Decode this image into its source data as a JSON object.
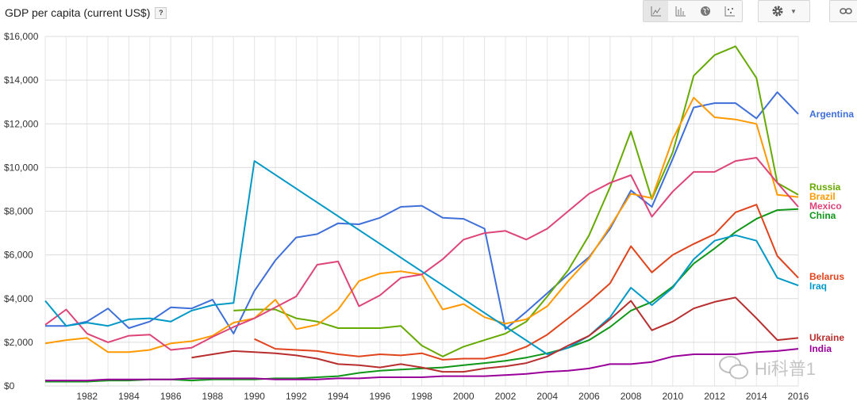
{
  "header": {
    "title": "GDP per capita (current US$)",
    "help_label": "?",
    "chart_type_buttons": [
      {
        "icon": "line-chart-icon",
        "active": true
      },
      {
        "icon": "bar-chart-icon",
        "active": false
      },
      {
        "icon": "globe-map-icon",
        "active": false
      },
      {
        "icon": "scatter-chart-icon",
        "active": false
      }
    ],
    "settings_icon": "gear-icon",
    "link_icon": "link-icon"
  },
  "watermark": "Hi科普1",
  "chart_data": {
    "type": "line",
    "title": "GDP per capita (current US$)",
    "xlabel": "",
    "ylabel": "",
    "xlim": [
      1980,
      2016
    ],
    "ylim": [
      0,
      16000
    ],
    "grid": true,
    "legend": "right (labels at line ends)",
    "x_ticks": [
      "1982",
      "1984",
      "1986",
      "1988",
      "1990",
      "1992",
      "1994",
      "1996",
      "1998",
      "2000",
      "2002",
      "2004",
      "2006",
      "2008",
      "2010",
      "2012",
      "2014",
      "2016"
    ],
    "y_ticks": [
      "$0",
      "$2,000",
      "$4,000",
      "$6,000",
      "$8,000",
      "$10,000",
      "$12,000",
      "$14,000",
      "$16,000"
    ],
    "series": [
      {
        "name": "Argentina",
        "color": "#3f6fd8",
        "start": 1980,
        "values": [
          2750,
          2750,
          2950,
          3550,
          2650,
          2950,
          3600,
          3550,
          3950,
          2400,
          4350,
          5750,
          6800,
          6950,
          7450,
          7400,
          7700,
          8200,
          8250,
          7700,
          7650,
          7200,
          2600,
          3400,
          4250,
          5100,
          5900,
          7200,
          8950,
          8200,
          10400,
          12750,
          12950,
          12950,
          12250,
          13450,
          12450
        ]
      },
      {
        "name": "Russia",
        "color": "#66aa00",
        "start": 1989,
        "values": [
          3450,
          3500,
          3500,
          3100,
          2950,
          2650,
          2650,
          2650,
          2750,
          1850,
          1350,
          1800,
          2100,
          2400,
          2950,
          4100,
          5300,
          6900,
          9100,
          11650,
          8550,
          10700,
          14200,
          15150,
          15550,
          14100,
          9300,
          8750
        ]
      },
      {
        "name": "Brazil",
        "color": "#ff9900",
        "start": 1980,
        "values": [
          1950,
          2100,
          2200,
          1550,
          1550,
          1650,
          1950,
          2050,
          2300,
          2900,
          3100,
          3950,
          2600,
          2800,
          3500,
          4800,
          5150,
          5250,
          5100,
          3500,
          3750,
          3150,
          2850,
          3050,
          3650,
          4800,
          5850,
          7300,
          8800,
          8600,
          11300,
          13200,
          12300,
          12200,
          12000,
          8750,
          8650
        ]
      },
      {
        "name": "Mexico",
        "color": "#dd4477",
        "start": 1980,
        "values": [
          2800,
          3500,
          2400,
          2000,
          2300,
          2350,
          1650,
          1750,
          2250,
          2700,
          3100,
          3600,
          4100,
          5550,
          5700,
          3650,
          4150,
          4950,
          5100,
          5800,
          6700,
          7000,
          7100,
          6700,
          7200,
          8000,
          8800,
          9300,
          9650,
          7750,
          8900,
          9800,
          9800,
          10300,
          10450,
          9300,
          8200
        ]
      },
      {
        "name": "China",
        "color": "#109618",
        "start": 1980,
        "values": [
          200,
          200,
          200,
          250,
          250,
          300,
          300,
          250,
          300,
          300,
          300,
          350,
          350,
          400,
          450,
          600,
          700,
          750,
          800,
          850,
          950,
          1050,
          1150,
          1300,
          1500,
          1750,
          2100,
          2700,
          3450,
          3850,
          4550,
          5600,
          6300,
          7050,
          7650,
          8050,
          8100
        ]
      },
      {
        "name": "Belarus",
        "color": "#e0441c",
        "start": 1990,
        "values": [
          2150,
          1700,
          1650,
          1600,
          1450,
          1350,
          1450,
          1400,
          1500,
          1200,
          1250,
          1250,
          1450,
          1800,
          2350,
          3100,
          3850,
          4700,
          6400,
          5200,
          6000,
          6500,
          6950,
          7950,
          8300,
          5950,
          4950
        ]
      },
      {
        "name": "Iraq",
        "color": "#0099c6",
        "x": [
          1980,
          1981,
          1982,
          1983,
          1984,
          1985,
          1986,
          1987,
          1988,
          1989,
          1990,
          2004,
          2005,
          2006,
          2007,
          2008,
          2009,
          2010,
          2011,
          2012,
          2013,
          2014,
          2015,
          2016
        ],
        "values": [
          3900,
          2750,
          2900,
          2750,
          3050,
          3100,
          2950,
          3450,
          3700,
          3800,
          10300,
          1450,
          1750,
          2300,
          3150,
          4500,
          3700,
          4500,
          5800,
          6650,
          6900,
          6650,
          4950,
          4600
        ]
      },
      {
        "name": "Ukraine",
        "color": "#b82e2e",
        "start": 1987,
        "values": [
          1300,
          1450,
          1600,
          1550,
          1500,
          1400,
          1250,
          1000,
          950,
          850,
          1000,
          850,
          650,
          650,
          800,
          900,
          1050,
          1350,
          1850,
          2300,
          3050,
          3900,
          2550,
          2950,
          3550,
          3850,
          4050,
          3100,
          2100,
          2200
        ]
      },
      {
        "name": "India",
        "color": "#990099",
        "start": 1980,
        "values": [
          250,
          250,
          250,
          300,
          300,
          300,
          300,
          350,
          350,
          350,
          350,
          300,
          300,
          300,
          350,
          350,
          400,
          400,
          400,
          450,
          450,
          450,
          500,
          550,
          650,
          700,
          800,
          1000,
          1000,
          1100,
          1350,
          1450,
          1450,
          1450,
          1550,
          1600,
          1700
        ]
      }
    ]
  }
}
